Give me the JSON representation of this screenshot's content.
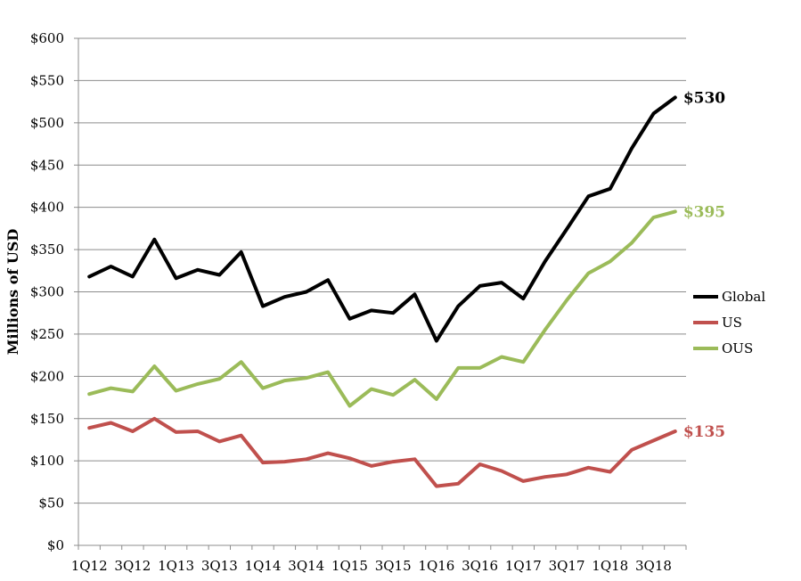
{
  "chart_data": {
    "type": "line",
    "title": "",
    "xlabel": "",
    "ylabel": "Millions of USD",
    "ylim": [
      0,
      600
    ],
    "y_ticks": [
      0,
      50,
      100,
      150,
      200,
      250,
      300,
      350,
      400,
      450,
      500,
      550,
      600
    ],
    "y_tick_labels": [
      "$0",
      "$50",
      "$100",
      "$150",
      "$200",
      "$250",
      "$300",
      "$350",
      "$400",
      "$450",
      "$500",
      "$550",
      "$600"
    ],
    "x_tick_labels": [
      "1Q12",
      "3Q12",
      "1Q13",
      "3Q13",
      "1Q14",
      "3Q14",
      "1Q15",
      "3Q15",
      "1Q16",
      "3Q16",
      "1Q17",
      "3Q17",
      "1Q18",
      "3Q18"
    ],
    "x": [
      "1Q12",
      "2Q12",
      "3Q12",
      "4Q12",
      "1Q13",
      "2Q13",
      "3Q13",
      "4Q13",
      "1Q14",
      "2Q14",
      "3Q14",
      "4Q14",
      "1Q15",
      "2Q15",
      "3Q15",
      "4Q15",
      "1Q16",
      "2Q16",
      "3Q16",
      "4Q16",
      "1Q17",
      "2Q17",
      "3Q17",
      "4Q17",
      "1Q18",
      "2Q18",
      "3Q18",
      "4Q18"
    ],
    "grid": true,
    "legend_position": "right",
    "series": [
      {
        "name": "Global",
        "color": "#000000",
        "values": [
          318,
          330,
          318,
          362,
          316,
          326,
          320,
          347,
          283,
          294,
          300,
          314,
          268,
          278,
          275,
          297,
          242,
          283,
          307,
          311,
          292,
          336,
          374,
          413,
          422,
          470,
          511,
          530
        ],
        "end_label": "$530"
      },
      {
        "name": "US",
        "color": "#c0504d",
        "values": [
          139,
          145,
          135,
          150,
          134,
          135,
          123,
          130,
          98,
          99,
          102,
          109,
          103,
          94,
          99,
          102,
          70,
          73,
          96,
          88,
          76,
          81,
          84,
          92,
          87,
          113,
          124,
          135
        ],
        "end_label": "$135"
      },
      {
        "name": "OUS",
        "color": "#9bbb59",
        "values": [
          179,
          186,
          182,
          212,
          183,
          191,
          197,
          217,
          186,
          195,
          198,
          205,
          165,
          185,
          178,
          196,
          173,
          210,
          210,
          223,
          217,
          255,
          290,
          322,
          336,
          358,
          388,
          395
        ],
        "end_label": "$395"
      }
    ]
  }
}
